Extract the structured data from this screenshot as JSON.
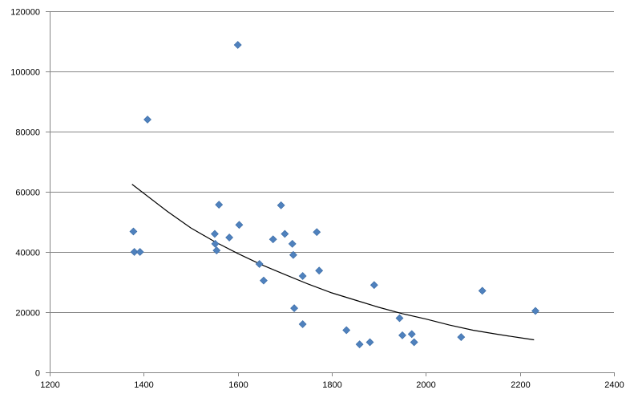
{
  "chart_data": {
    "type": "scatter",
    "title": "",
    "xlabel": "",
    "ylabel": "",
    "xlim": [
      1200,
      2400
    ],
    "ylim": [
      0,
      120000
    ],
    "x_ticks": [
      1200,
      1400,
      1600,
      1800,
      2000,
      2200,
      2400
    ],
    "y_ticks": [
      0,
      20000,
      40000,
      60000,
      80000,
      100000,
      120000
    ],
    "x_tick_labels": [
      "1200",
      "1400",
      "1600",
      "1800",
      "2000",
      "2200",
      "2400"
    ],
    "y_tick_labels": [
      "0",
      "20000",
      "40000",
      "60000",
      "80000",
      "100000",
      "120000"
    ],
    "grid": {
      "horizontal": true,
      "vertical": false
    },
    "legend": "none",
    "series": [
      {
        "marker": "diamond",
        "color": "#4F81BD",
        "points": [
          [
            1378,
            46800
          ],
          [
            1380,
            40000
          ],
          [
            1392,
            40000
          ],
          [
            1408,
            84000
          ],
          [
            1551,
            46000
          ],
          [
            1552,
            42700
          ],
          [
            1555,
            40500
          ],
          [
            1560,
            55700
          ],
          [
            1582,
            44800
          ],
          [
            1600,
            108800
          ],
          [
            1603,
            49000
          ],
          [
            1646,
            36000
          ],
          [
            1655,
            30500
          ],
          [
            1675,
            44200
          ],
          [
            1692,
            55500
          ],
          [
            1700,
            46000
          ],
          [
            1716,
            42700
          ],
          [
            1718,
            39000
          ],
          [
            1720,
            21300
          ],
          [
            1738,
            16000
          ],
          [
            1738,
            32000
          ],
          [
            1768,
            46600
          ],
          [
            1773,
            33800
          ],
          [
            1831,
            14000
          ],
          [
            1859,
            9300
          ],
          [
            1881,
            10000
          ],
          [
            1890,
            29000
          ],
          [
            1944,
            18000
          ],
          [
            1950,
            12300
          ],
          [
            1970,
            12700
          ],
          [
            1975,
            10000
          ],
          [
            2075,
            11700
          ],
          [
            2120,
            27100
          ],
          [
            2233,
            20400
          ]
        ]
      }
    ],
    "trendline": {
      "type": "exponential",
      "color": "#000000",
      "x_start": 1375,
      "x_end": 2230,
      "points": [
        [
          1375,
          62500
        ],
        [
          1450,
          53500
        ],
        [
          1500,
          48000
        ],
        [
          1550,
          43500
        ],
        [
          1600,
          39500
        ],
        [
          1650,
          35800
        ],
        [
          1700,
          32500
        ],
        [
          1750,
          29300
        ],
        [
          1800,
          26400
        ],
        [
          1850,
          24000
        ],
        [
          1900,
          21600
        ],
        [
          1950,
          19500
        ],
        [
          2000,
          17700
        ],
        [
          2050,
          15700
        ],
        [
          2100,
          14000
        ],
        [
          2150,
          12700
        ],
        [
          2200,
          11500
        ],
        [
          2230,
          10800
        ]
      ]
    }
  }
}
